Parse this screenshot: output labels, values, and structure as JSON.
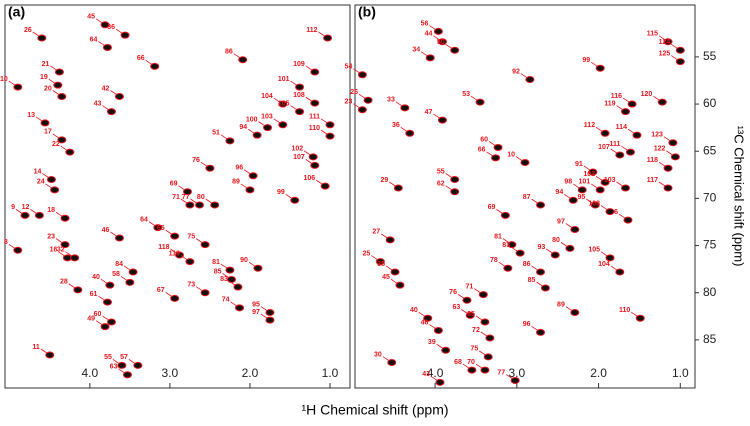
{
  "chart_data": [
    {
      "type": "scatter",
      "panel_label": "(a)",
      "xlabel": "¹H Chemical shift (ppm)",
      "color": "#e8141b",
      "xlim": [
        5.06,
        0.75
      ],
      "xticks": [
        {
          "value": 4,
          "label": "4.0"
        },
        {
          "value": 3,
          "label": "3.0"
        },
        {
          "value": 2,
          "label": "2.0"
        },
        {
          "value": 1,
          "label": "1.0"
        }
      ],
      "ylim": [
        49.5,
        90.1
      ],
      "point_labels": [
        "45",
        "36",
        "26",
        "64",
        "66",
        "86",
        "112",
        "10",
        "19",
        "21",
        "20",
        "42",
        "43",
        "13",
        "17",
        "22",
        "101",
        "109",
        "104",
        "105",
        "108",
        "103",
        "100",
        "111",
        "110",
        "51",
        "94",
        "102",
        "107",
        "99",
        "106",
        "96",
        "89",
        "76",
        "69",
        "71",
        "77",
        "80",
        "14",
        "24",
        "9",
        "12",
        "18",
        "23",
        "8",
        "16",
        "32",
        "46",
        "64",
        "65",
        "75",
        "118",
        "119",
        "81",
        "85",
        "90",
        "83",
        "73",
        "74",
        "95",
        "97",
        "84",
        "58",
        "28",
        "40",
        "61",
        "67",
        "49",
        "60",
        "11",
        "55",
        "57",
        "63"
      ],
      "x": [
        3.81,
        3.56,
        4.6,
        3.78,
        3.19,
        2.09,
        1.03,
        4.9,
        4.4,
        4.38,
        4.35,
        3.63,
        3.73,
        4.56,
        4.35,
        4.25,
        1.38,
        1.19,
        1.59,
        1.38,
        1.19,
        1.59,
        1.78,
        1.0,
        1.0,
        2.25,
        1.91,
        1.21,
        1.19,
        1.44,
        1.06,
        1.96,
        2.0,
        2.5,
        2.78,
        2.75,
        2.63,
        2.44,
        4.48,
        4.44,
        4.81,
        4.63,
        4.31,
        4.31,
        4.9,
        4.28,
        4.19,
        3.63,
        3.15,
        2.94,
        2.56,
        2.88,
        2.75,
        2.25,
        2.23,
        1.9,
        2.15,
        2.56,
        2.13,
        1.75,
        1.75,
        3.46,
        3.5,
        4.15,
        3.75,
        3.78,
        2.94,
        3.81,
        3.73,
        4.5,
        3.6,
        3.4,
        3.53
      ],
      "values": [
        51.6,
        52.7,
        53,
        54,
        56,
        55.3,
        53,
        58.2,
        58,
        56.6,
        59.2,
        59.2,
        60.8,
        62,
        63.8,
        65.1,
        58.2,
        56.6,
        60,
        60.8,
        59.9,
        62.2,
        62.5,
        62.2,
        63.4,
        63.9,
        63.3,
        65.6,
        66.5,
        70.2,
        68.7,
        67.6,
        69.1,
        66.8,
        69.3,
        70.7,
        70.7,
        70.7,
        68,
        69.1,
        71.8,
        71.8,
        72.1,
        74.9,
        75.5,
        76.3,
        76.3,
        74.2,
        73.1,
        74,
        74.9,
        76,
        76.7,
        77.6,
        78.6,
        77.4,
        79.4,
        80,
        81.6,
        82.1,
        82.9,
        77.8,
        78.9,
        79.7,
        79.2,
        81,
        80.6,
        83.6,
        83.1,
        86.6,
        87.7,
        87.7,
        88.7
      ]
    },
    {
      "type": "scatter",
      "panel_label": "(b)",
      "ylabel": "¹³C Chemical shift (ppm)",
      "color": "#e8141b",
      "xlim": [
        4.98,
        0.82
      ],
      "xticks": [
        {
          "value": 4,
          "label": "4.0"
        },
        {
          "value": 3,
          "label": "3.0"
        },
        {
          "value": 2,
          "label": "2.0"
        },
        {
          "value": 1,
          "label": "1.0"
        }
      ],
      "ylim": [
        49.5,
        90.1
      ],
      "yticks": [
        55,
        60,
        65,
        70,
        75,
        80,
        85
      ],
      "point_labels": [
        "56",
        "44",
        "50",
        "54",
        "34",
        "92",
        "99",
        "115",
        "124",
        "125",
        "26",
        "33",
        "53",
        "23",
        "36",
        "47",
        "116",
        "119",
        "120",
        "123",
        "112",
        "114",
        "122",
        "118",
        "111",
        "107",
        "117",
        "60",
        "66",
        "10",
        "91",
        "102",
        "98",
        "101",
        "103",
        "87",
        "94",
        "95",
        "97",
        "106",
        "108",
        "69",
        "29",
        "27",
        "25",
        "35",
        "45",
        "62",
        "55",
        "81",
        "83",
        "93",
        "105",
        "104",
        "86",
        "80",
        "78",
        "85",
        "89",
        "110",
        "96",
        "71",
        "76",
        "63",
        "65",
        "40",
        "46",
        "72",
        "39",
        "75",
        "30",
        "43",
        "68",
        "70",
        "77"
      ],
      "x": [
        3.96,
        3.91,
        3.76,
        4.89,
        4.06,
        2.84,
        1.98,
        1.15,
        1.0,
        1.0,
        4.82,
        4.37,
        3.45,
        4.89,
        4.31,
        3.91,
        1.59,
        1.67,
        1.22,
        1.09,
        1.92,
        1.53,
        1.06,
        1.15,
        1.61,
        1.74,
        1.15,
        3.23,
        3.26,
        2.9,
        2.07,
        1.92,
        2.2,
        1.98,
        1.67,
        2.71,
        2.31,
        2.04,
        2.29,
        1.64,
        1.86,
        3.14,
        4.45,
        4.55,
        4.67,
        4.49,
        4.43,
        3.76,
        3.76,
        3.06,
        2.96,
        2.53,
        1.86,
        1.74,
        2.71,
        2.35,
        3.11,
        2.65,
        2.29,
        1.49,
        2.71,
        3.41,
        3.61,
        3.57,
        3.39,
        4.09,
        3.96,
        3.33,
        3.87,
        3.35,
        4.53,
        3.94,
        3.55,
        3.39,
        3.02
      ],
      "values": [
        52.3,
        53.4,
        54.3,
        56.9,
        55.1,
        57.4,
        56.2,
        53.4,
        54.3,
        55.5,
        59.6,
        60.4,
        59.8,
        60.6,
        63.1,
        61.7,
        60,
        60.8,
        59.8,
        64.1,
        63.1,
        63.3,
        65.6,
        66.8,
        65.1,
        65.4,
        68.9,
        64.6,
        65.7,
        66.2,
        67.2,
        68.3,
        69.1,
        69.1,
        68.9,
        70.7,
        70.2,
        70.7,
        73.3,
        72.3,
        71.4,
        71.8,
        68.9,
        74.4,
        76.7,
        77.8,
        79.2,
        69.3,
        68,
        74.9,
        75.8,
        76,
        76.3,
        77.8,
        77.8,
        75.3,
        77.4,
        79.5,
        82.1,
        82.7,
        84.2,
        80.2,
        80.8,
        82.4,
        83.1,
        82.7,
        84,
        84.8,
        86.1,
        86.8,
        87.4,
        89.5,
        88.2,
        88.2,
        89.3
      ]
    }
  ]
}
